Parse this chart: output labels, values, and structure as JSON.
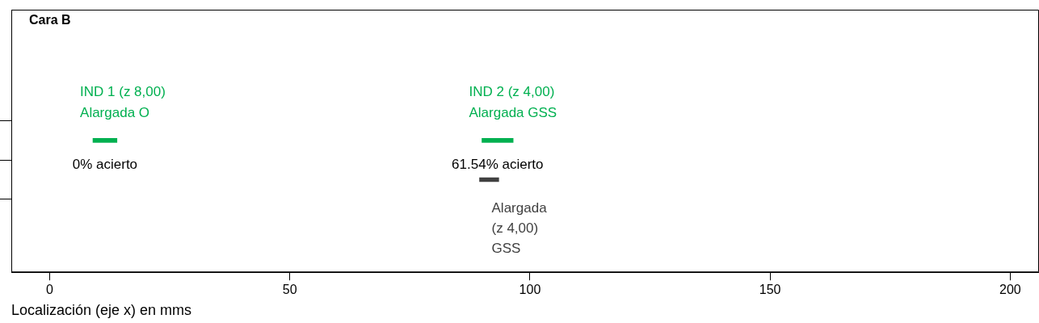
{
  "chart_data": {
    "type": "bar",
    "orientation": "horizontal",
    "title": "Cara B",
    "xlabel": "Localización (eje x) en mms",
    "categories": [
      null,
      null
    ],
    "series": [
      {
        "name": "IND 1 (z 8,00)\nAlargada O",
        "color": "#00b050",
        "base": [
          9,
          null
        ],
        "values": [
          5,
          null
        ]
      },
      {
        "name": "IND 2 (z 4,00)\nAlargada GSS",
        "color": "#00b050",
        "base": [
          90,
          null
        ],
        "values": [
          6.5,
          null
        ]
      },
      {
        "name": "Alargada\n(z 4,00)\nGSS",
        "color": "#404040",
        "base": [
          null,
          89.5
        ],
        "values": [
          null,
          4
        ]
      }
    ],
    "annotations": [
      "0% acierto",
      "61.54% acierto"
    ],
    "xlim": [
      -8,
      206
    ],
    "xticks": [
      0,
      50,
      100,
      150,
      200
    ],
    "tick_labels": "x",
    "grid": false,
    "legend": false
  }
}
